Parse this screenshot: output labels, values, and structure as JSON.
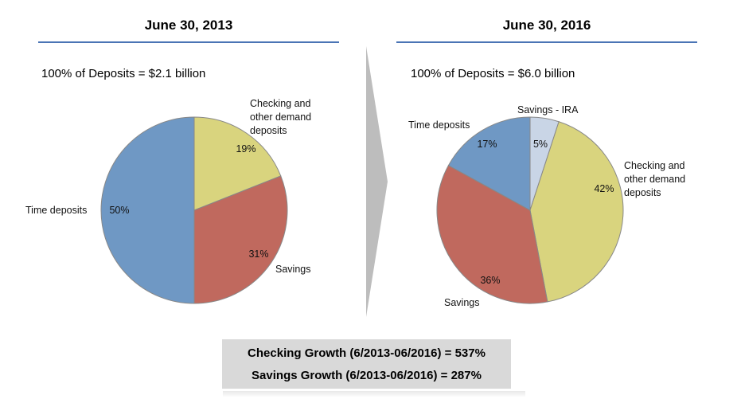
{
  "left_panel": {
    "title": "June 30, 2013",
    "subtitle": "100% of Deposits = $2.1 billion"
  },
  "right_panel": {
    "title": "June 30, 2016",
    "subtitle": "100% of Deposits = $6.0 billion"
  },
  "growth": {
    "checking": "Checking Growth (6/2013-06/2016) = 537%",
    "savings": "Savings Growth (6/2013-06/2016) = 287%"
  },
  "colors": {
    "rule": "#4a74b5",
    "checking": "#d9d47e",
    "savings": "#c0695e",
    "time_deposits": "#6f98c4",
    "savings_ira": "#c9d5e6",
    "arrow": "#bdbdbd",
    "growth_box": "#d9d9d9"
  },
  "chart_data": [
    {
      "type": "pie",
      "title": "June 30, 2013",
      "subtitle": "100% of Deposits = $2.1 billion",
      "categories": [
        "Checking and other demand deposits",
        "Savings",
        "Time deposits"
      ],
      "values": [
        19,
        31,
        50
      ],
      "labels": [
        "19%",
        "31%",
        "50%"
      ],
      "category_labels": [
        [
          "Checking and",
          "other demand",
          "deposits"
        ],
        [
          "Savings"
        ],
        [
          "Time deposits"
        ]
      ]
    },
    {
      "type": "pie",
      "title": "June 30, 2016",
      "subtitle": "100% of Deposits = $6.0 billion",
      "categories": [
        "Savings - IRA",
        "Checking and other demand deposits",
        "Savings",
        "Time deposits"
      ],
      "values": [
        5,
        42,
        36,
        17
      ],
      "labels": [
        "5%",
        "42%",
        "36%",
        "17%"
      ],
      "category_labels": [
        [
          "Savings - IRA"
        ],
        [
          "Checking and",
          "other demand",
          "deposits"
        ],
        [
          "Savings"
        ],
        [
          "Time deposits"
        ]
      ]
    }
  ]
}
